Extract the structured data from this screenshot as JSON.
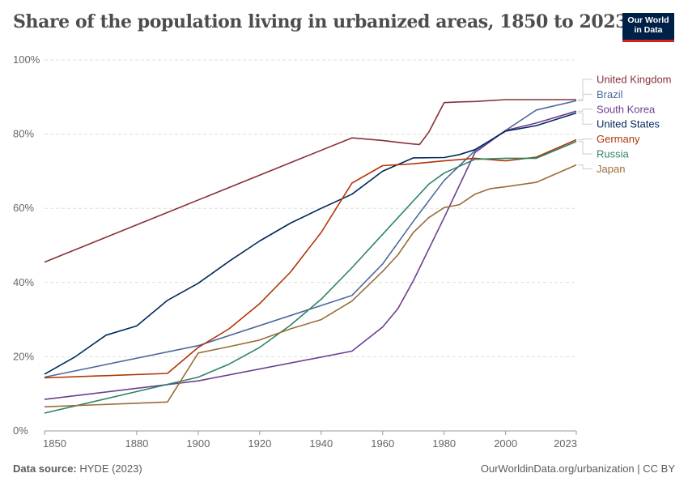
{
  "header": {
    "title": "Share of the population living in urbanized areas, 1850 to 2023",
    "logo_line1": "Our World",
    "logo_line2": "in Data"
  },
  "footer": {
    "source_label": "Data source:",
    "source_value": "HYDE (2023)",
    "url": "OurWorldinData.org/urbanization | CC BY"
  },
  "chart_data": {
    "type": "line",
    "xlim": [
      1850,
      2023
    ],
    "ylim": [
      0,
      100
    ],
    "x_ticks": [
      1850,
      1880,
      1900,
      1920,
      1940,
      1960,
      1980,
      2000,
      2023
    ],
    "y_ticks": [
      0,
      20,
      40,
      60,
      80,
      100
    ],
    "y_tick_labels": [
      "0%",
      "20%",
      "40%",
      "60%",
      "80%",
      "100%"
    ],
    "grid": "horizontal dashed",
    "legend": "right",
    "series": [
      {
        "name": "United Kingdom",
        "color": "#883039",
        "values": [
          [
            1850,
            45.5
          ],
          [
            1950,
            79
          ],
          [
            1960,
            78.3
          ],
          [
            1968,
            77.5
          ],
          [
            1972,
            77.2
          ],
          [
            1975,
            80.5
          ],
          [
            1980,
            88.5
          ],
          [
            1985,
            88.7
          ],
          [
            1990,
            88.8
          ],
          [
            2000,
            89.3
          ],
          [
            2010,
            89.3
          ],
          [
            2023,
            89.3
          ]
        ]
      },
      {
        "name": "Brazil",
        "color": "#4c6a9c",
        "values": [
          [
            1850,
            14.5
          ],
          [
            1900,
            23
          ],
          [
            1950,
            36.5
          ],
          [
            1960,
            45
          ],
          [
            1970,
            56.5
          ],
          [
            1980,
            67.5
          ],
          [
            1990,
            75.5
          ],
          [
            2000,
            81
          ],
          [
            2010,
            86.5
          ],
          [
            2023,
            89
          ]
        ]
      },
      {
        "name": "South Korea",
        "color": "#6d3e91",
        "values": [
          [
            1850,
            8.5
          ],
          [
            1900,
            13.5
          ],
          [
            1950,
            21.5
          ],
          [
            1960,
            28
          ],
          [
            1965,
            33
          ],
          [
            1970,
            40.5
          ],
          [
            1980,
            57.5
          ],
          [
            1990,
            75
          ],
          [
            2000,
            81
          ],
          [
            2010,
            83
          ],
          [
            2023,
            86.2
          ]
        ]
      },
      {
        "name": "United States",
        "color": "#00295b",
        "values": [
          [
            1850,
            15.3
          ],
          [
            1860,
            20
          ],
          [
            1870,
            25.8
          ],
          [
            1880,
            28.3
          ],
          [
            1890,
            35.2
          ],
          [
            1900,
            39.8
          ],
          [
            1910,
            45.7
          ],
          [
            1920,
            51.2
          ],
          [
            1930,
            56
          ],
          [
            1940,
            60
          ],
          [
            1950,
            63.8
          ],
          [
            1960,
            70
          ],
          [
            1970,
            73.6
          ],
          [
            1980,
            73.7
          ],
          [
            1985,
            74.5
          ],
          [
            1990,
            75.8
          ],
          [
            2000,
            80.8
          ],
          [
            2010,
            82.3
          ],
          [
            2023,
            85.7
          ]
        ]
      },
      {
        "name": "Germany",
        "color": "#b13507",
        "values": [
          [
            1850,
            14.3
          ],
          [
            1890,
            15.5
          ],
          [
            1900,
            22.5
          ],
          [
            1910,
            27.5
          ],
          [
            1920,
            34.3
          ],
          [
            1930,
            42.8
          ],
          [
            1940,
            53.5
          ],
          [
            1950,
            66.8
          ],
          [
            1960,
            71.5
          ],
          [
            1970,
            72
          ],
          [
            1980,
            72.8
          ],
          [
            1990,
            73.5
          ],
          [
            2000,
            72.8
          ],
          [
            2010,
            73.8
          ],
          [
            2023,
            78.5
          ]
        ]
      },
      {
        "name": "Russia",
        "color": "#2c8465",
        "values": [
          [
            1850,
            4.8
          ],
          [
            1900,
            14.5
          ],
          [
            1910,
            18
          ],
          [
            1920,
            22.5
          ],
          [
            1930,
            28.5
          ],
          [
            1940,
            35.5
          ],
          [
            1950,
            44
          ],
          [
            1960,
            53
          ],
          [
            1970,
            62
          ],
          [
            1975,
            66.5
          ],
          [
            1980,
            69.5
          ],
          [
            1990,
            73.2
          ],
          [
            2000,
            73.5
          ],
          [
            2010,
            73.5
          ],
          [
            2023,
            78
          ]
        ]
      },
      {
        "name": "Japan",
        "color": "#996d39",
        "values": [
          [
            1850,
            6.5
          ],
          [
            1890,
            7.8
          ],
          [
            1900,
            21
          ],
          [
            1910,
            22.7
          ],
          [
            1920,
            24.5
          ],
          [
            1930,
            27.5
          ],
          [
            1940,
            30
          ],
          [
            1950,
            35
          ],
          [
            1960,
            43
          ],
          [
            1965,
            47.5
          ],
          [
            1970,
            53.5
          ],
          [
            1975,
            57.5
          ],
          [
            1980,
            60.2
          ],
          [
            1985,
            61
          ],
          [
            1990,
            63.8
          ],
          [
            1995,
            65.3
          ],
          [
            2000,
            65.8
          ],
          [
            2010,
            67
          ],
          [
            2023,
            71.7
          ]
        ]
      }
    ]
  }
}
